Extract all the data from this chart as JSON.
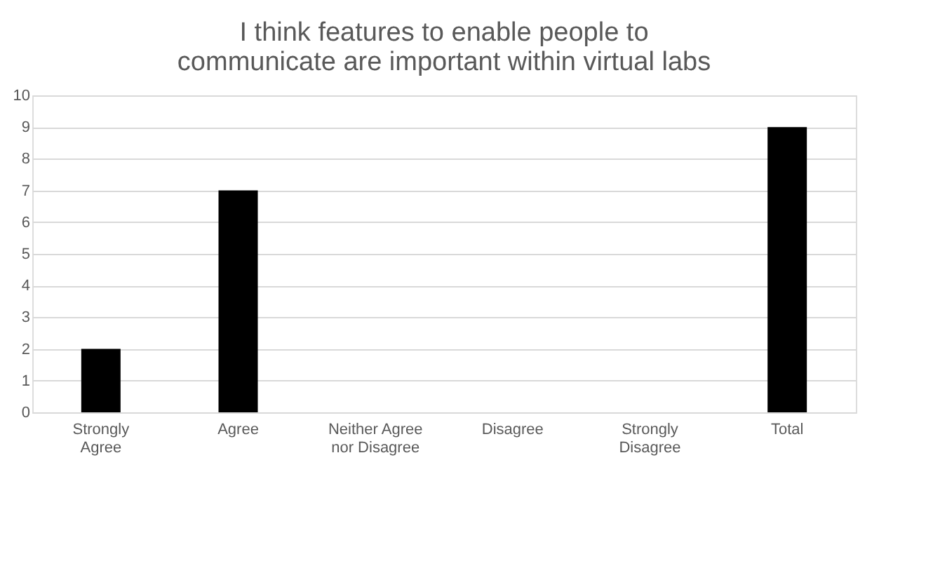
{
  "chart_data": {
    "type": "bar",
    "title": "I think features to enable people to communicate are important within virtual labs",
    "categories": [
      "Strongly Agree",
      "Agree",
      "Neither Agree nor Disagree",
      "Disagree",
      "Strongly Disagree",
      "Total"
    ],
    "values": [
      2,
      7,
      0,
      0,
      0,
      9
    ],
    "color": "#000000",
    "ylim": [
      0,
      10
    ],
    "yticks": [
      0,
      1,
      2,
      3,
      4,
      5,
      6,
      7,
      8,
      9,
      10
    ],
    "grid": "y"
  }
}
